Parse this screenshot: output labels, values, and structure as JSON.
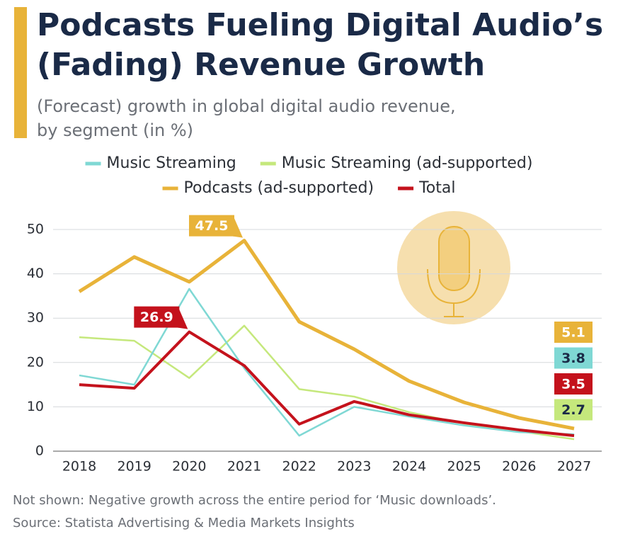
{
  "chart_data": {
    "type": "line",
    "title_lines": [
      "Podcasts Fueling Digital Audio’s",
      "(Fading) Revenue Growth"
    ],
    "subtitle_lines": [
      "(Forecast) growth in global digital audio revenue,",
      "by segment (in %)"
    ],
    "categories": [
      "2018",
      "2019",
      "2020",
      "2021",
      "2022",
      "2023",
      "2024",
      "2025",
      "2026",
      "2027"
    ],
    "series": [
      {
        "name": "Music Streaming",
        "color": "#7fd8d4",
        "values": [
          17.1,
          15,
          36.6,
          18.7,
          3.5,
          10,
          7.8,
          5.8,
          4.3,
          3.8
        ],
        "value_labels": [
          null,
          null,
          null,
          null,
          null,
          null,
          null,
          null,
          null,
          "3.8"
        ]
      },
      {
        "name": "Music Streaming (ad-supported)",
        "color": "#c5e87c",
        "values": [
          25.7,
          24.9,
          16.5,
          28.3,
          14,
          12.3,
          8.8,
          6.2,
          4.5,
          2.7
        ],
        "value_labels": [
          null,
          null,
          null,
          null,
          null,
          null,
          null,
          null,
          null,
          "2.7"
        ]
      },
      {
        "name": "Podcasts (ad-supported)",
        "color": "#e8b339",
        "values": [
          36,
          43.8,
          38.2,
          47.5,
          29.2,
          23,
          15.8,
          11,
          7.5,
          5.1
        ],
        "value_labels": [
          null,
          null,
          null,
          "47.5",
          null,
          null,
          null,
          null,
          null,
          "5.1"
        ]
      },
      {
        "name": "Total",
        "color": "#c4121c",
        "values": [
          15,
          14.2,
          26.9,
          19.3,
          6.1,
          11.2,
          8.2,
          6.4,
          4.8,
          3.5
        ],
        "value_labels": [
          null,
          null,
          "26.9",
          null,
          null,
          null,
          null,
          null,
          null,
          "3.5"
        ]
      }
    ],
    "ylim": [
      0,
      50
    ],
    "yticks": [
      0,
      10,
      20,
      30,
      40,
      50
    ],
    "grid": true,
    "notes": [
      "Not shown: Negative growth across the entire period for ‘Music downloads’.",
      "Source: Statista Advertising & Media Markets Insights"
    ]
  }
}
